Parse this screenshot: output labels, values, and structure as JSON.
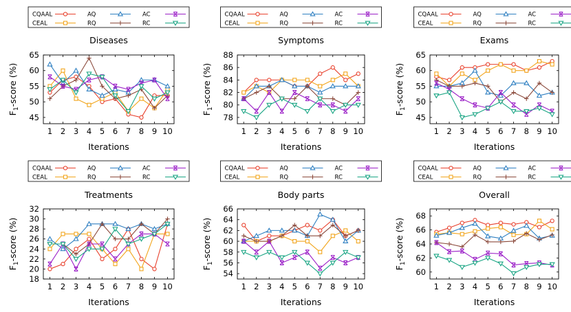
{
  "figure": {
    "xlabel": "Iterations",
    "ylabel_prefix": "F",
    "ylabel_sub": "1",
    "ylabel_suffix": "-score (%)"
  },
  "legend": [
    {
      "name": "CQAAL",
      "color": "#e8412d",
      "marker": "circle"
    },
    {
      "name": "AQ",
      "color": "#2e7fc1",
      "marker": "triangle-up"
    },
    {
      "name": "AC",
      "color": "#9b1fc7",
      "marker": "x-bar"
    },
    {
      "name": "CEAL",
      "color": "#f2a51c",
      "marker": "square"
    },
    {
      "name": "RQ",
      "color": "#8b4a3c",
      "marker": "plus"
    },
    {
      "name": "RC",
      "color": "#1aa584",
      "marker": "triangle-down"
    }
  ],
  "chart_data": [
    {
      "type": "line",
      "title": "Diseases",
      "x": [
        1,
        2,
        3,
        4,
        5,
        6,
        7,
        8,
        9,
        10
      ],
      "xlabel": "Iterations",
      "ylabel": "F1-score (%)",
      "ylim": [
        43,
        65
      ],
      "yticks": [
        45,
        50,
        55,
        60,
        65
      ],
      "series": [
        {
          "name": "CQAAL",
          "values": [
            53,
            57,
            58,
            55,
            50,
            51,
            46,
            45,
            52,
            52
          ]
        },
        {
          "name": "CEAL",
          "values": [
            55,
            60,
            51,
            49,
            51,
            53,
            47,
            51,
            48,
            54
          ]
        },
        {
          "name": "AQ",
          "values": [
            62,
            56,
            60,
            54,
            52,
            54,
            53,
            57,
            57,
            55
          ]
        },
        {
          "name": "RQ",
          "values": [
            51,
            55,
            57,
            64,
            55,
            51,
            52,
            54,
            48,
            52
          ]
        },
        {
          "name": "AC",
          "values": [
            58,
            55,
            54,
            57,
            58,
            55,
            54,
            56,
            57,
            51
          ]
        },
        {
          "name": "RC",
          "values": [
            54,
            57,
            53,
            59,
            58,
            52,
            47,
            55,
            51,
            53
          ]
        }
      ]
    },
    {
      "type": "line",
      "title": "Symptoms",
      "x": [
        1,
        2,
        3,
        4,
        5,
        6,
        7,
        8,
        9,
        10
      ],
      "xlabel": "Iterations",
      "ylabel": "F1-score (%)",
      "ylim": [
        77,
        88
      ],
      "yticks": [
        78,
        80,
        82,
        84,
        86,
        88
      ],
      "series": [
        {
          "name": "CQAAL",
          "values": [
            82,
            84,
            84,
            84,
            83,
            83,
            85,
            86,
            84,
            85
          ]
        },
        {
          "name": "CEAL",
          "values": [
            82,
            83,
            82,
            84,
            84,
            84,
            83,
            84,
            85,
            83
          ]
        },
        {
          "name": "AQ",
          "values": [
            81,
            83,
            83,
            84,
            83,
            83,
            82,
            83,
            83,
            83
          ]
        },
        {
          "name": "RQ",
          "values": [
            81,
            82,
            83,
            81,
            81,
            83,
            81,
            81,
            80,
            82
          ]
        },
        {
          "name": "AC",
          "values": [
            81,
            79,
            82,
            79,
            82,
            81,
            80,
            80,
            79,
            81
          ]
        },
        {
          "name": "RC",
          "values": [
            79,
            78,
            80,
            81,
            80,
            79,
            81,
            79,
            80,
            80
          ]
        }
      ]
    },
    {
      "type": "line",
      "title": "Exams",
      "x": [
        1,
        2,
        3,
        4,
        5,
        6,
        7,
        8,
        9,
        10
      ],
      "xlabel": "Iterations",
      "ylabel": "F1-score (%)",
      "ylim": [
        43,
        65
      ],
      "yticks": [
        45,
        50,
        55,
        60,
        65
      ],
      "series": [
        {
          "name": "CQAAL",
          "values": [
            58,
            57,
            61,
            61,
            62,
            62,
            62,
            60,
            61,
            63
          ]
        },
        {
          "name": "CEAL",
          "values": [
            59,
            55,
            59,
            57,
            60,
            62,
            60,
            60,
            63,
            62
          ]
        },
        {
          "name": "AQ",
          "values": [
            55,
            55,
            56,
            60,
            53,
            52,
            56,
            56,
            52,
            53
          ]
        },
        {
          "name": "RQ",
          "values": [
            57,
            55,
            55,
            56,
            55,
            50,
            53,
            51,
            56,
            53
          ]
        },
        {
          "name": "AC",
          "values": [
            56,
            54,
            51,
            49,
            48,
            53,
            49,
            46,
            49,
            47
          ]
        },
        {
          "name": "RC",
          "values": [
            52,
            53,
            45,
            46,
            48,
            50,
            47,
            47,
            48,
            46
          ]
        }
      ]
    },
    {
      "type": "line",
      "title": "Treatments",
      "x": [
        1,
        2,
        3,
        4,
        5,
        6,
        7,
        8,
        9,
        10
      ],
      "xlabel": "Iterations",
      "ylabel": "F1-score (%)",
      "ylim": [
        18,
        32
      ],
      "yticks": [
        18,
        20,
        22,
        24,
        26,
        28,
        30,
        32
      ],
      "series": [
        {
          "name": "CQAAL",
          "values": [
            20,
            21,
            24,
            26,
            22,
            24,
            28,
            22,
            20,
            29
          ]
        },
        {
          "name": "CEAL",
          "values": [
            24,
            27,
            27,
            27,
            24,
            21,
            24,
            20,
            27,
            27
          ]
        },
        {
          "name": "AQ",
          "values": [
            26,
            24,
            26,
            29,
            29,
            29,
            28,
            29,
            28,
            29
          ]
        },
        {
          "name": "RQ",
          "values": [
            25,
            25,
            23,
            25,
            29,
            26,
            26,
            29,
            27,
            30
          ]
        },
        {
          "name": "AC",
          "values": [
            21,
            25,
            20,
            25,
            25,
            22,
            25,
            27,
            27,
            25
          ]
        },
        {
          "name": "RC",
          "values": [
            25,
            25,
            22,
            24,
            24,
            28,
            25,
            26,
            27,
            29
          ]
        }
      ]
    },
    {
      "type": "line",
      "title": "Body parts",
      "x": [
        1,
        2,
        3,
        4,
        5,
        6,
        7,
        8,
        9,
        10
      ],
      "xlabel": "Iterations",
      "ylabel": "F1-score (%)",
      "ylim": [
        53,
        66
      ],
      "yticks": [
        54,
        56,
        58,
        60,
        62,
        64,
        66
      ],
      "series": [
        {
          "name": "CQAAL",
          "values": [
            63,
            60,
            61,
            61,
            62,
            63,
            62,
            64,
            61,
            62
          ]
        },
        {
          "name": "CEAL",
          "values": [
            60,
            60,
            60,
            61,
            60,
            60,
            58,
            61,
            62,
            60
          ]
        },
        {
          "name": "AQ",
          "values": [
            60,
            61,
            62,
            62,
            62,
            61,
            65,
            64,
            60,
            62
          ]
        },
        {
          "name": "RQ",
          "values": [
            61,
            60,
            60,
            61,
            63,
            61,
            61,
            63,
            61,
            62
          ]
        },
        {
          "name": "AC",
          "values": [
            60,
            58,
            60,
            56,
            57,
            58,
            55,
            57,
            56,
            57
          ]
        },
        {
          "name": "RC",
          "values": [
            58,
            57,
            58,
            57,
            58,
            56,
            54,
            56,
            58,
            57
          ]
        }
      ]
    },
    {
      "type": "line",
      "title": "Overall",
      "x": [
        1,
        2,
        3,
        4,
        5,
        6,
        7,
        8,
        9,
        10
      ],
      "xlabel": "Iterations",
      "ylabel": "F1-score (%)",
      "ylim": [
        59,
        69
      ],
      "yticks": [
        60,
        62,
        64,
        66,
        68
      ],
      "series": [
        {
          "name": "CQAAL",
          "values": [
            65.7,
            66.3,
            67.0,
            67.4,
            66.7,
            67.0,
            66.8,
            67.1,
            66.4,
            67.3
          ]
        },
        {
          "name": "CEAL",
          "values": [
            65.4,
            65.6,
            65.4,
            65.8,
            66.2,
            66.4,
            65.3,
            65.4,
            67.3,
            66.1
          ]
        },
        {
          "name": "AQ",
          "values": [
            65.2,
            65.6,
            66.3,
            66.9,
            65.1,
            64.8,
            65.9,
            66.6,
            64.8,
            65.2
          ]
        },
        {
          "name": "RQ",
          "values": [
            64.2,
            64.0,
            63.6,
            65.3,
            64.3,
            64.3,
            64.4,
            65.5,
            64.6,
            65.3
          ]
        },
        {
          "name": "AC",
          "values": [
            64.2,
            62.9,
            63.0,
            61.8,
            62.7,
            62.6,
            61.0,
            61.2,
            61.3,
            61.0
          ]
        },
        {
          "name": "RC",
          "values": [
            62.3,
            61.7,
            60.7,
            61.3,
            62.0,
            61.2,
            59.8,
            60.7,
            61.1,
            61.1
          ]
        }
      ]
    }
  ]
}
